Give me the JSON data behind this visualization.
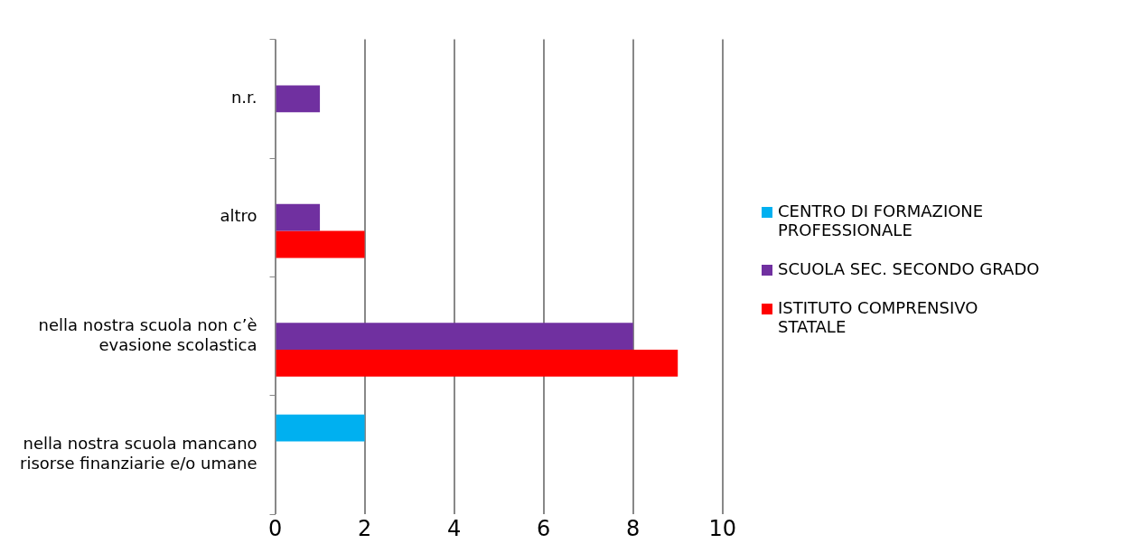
{
  "chart_data": {
    "type": "bar",
    "orientation": "horizontal",
    "categories": [
      "n.r.",
      "altro",
      "nella nostra scuola non c’è evasione scolastica",
      "nella nostra scuola mancano risorse finanziarie e/o umane"
    ],
    "series": [
      {
        "name": "CENTRO DI FORMAZIONE PROFESSIONALE",
        "color": "#00b0f0",
        "values": [
          null,
          null,
          null,
          2
        ]
      },
      {
        "name": "SCUOLA SEC. SECONDO GRADO",
        "color": "#7030a0",
        "values": [
          1,
          1,
          8,
          null
        ]
      },
      {
        "name": "ISTITUTO COMPRENSIVO STATALE",
        "color": "#ff0000",
        "values": [
          null,
          2,
          9,
          null
        ]
      }
    ],
    "xlim": [
      0,
      10
    ],
    "xticks": [
      0,
      2,
      4,
      6,
      8,
      10
    ],
    "grid": "x",
    "legend": "right"
  }
}
